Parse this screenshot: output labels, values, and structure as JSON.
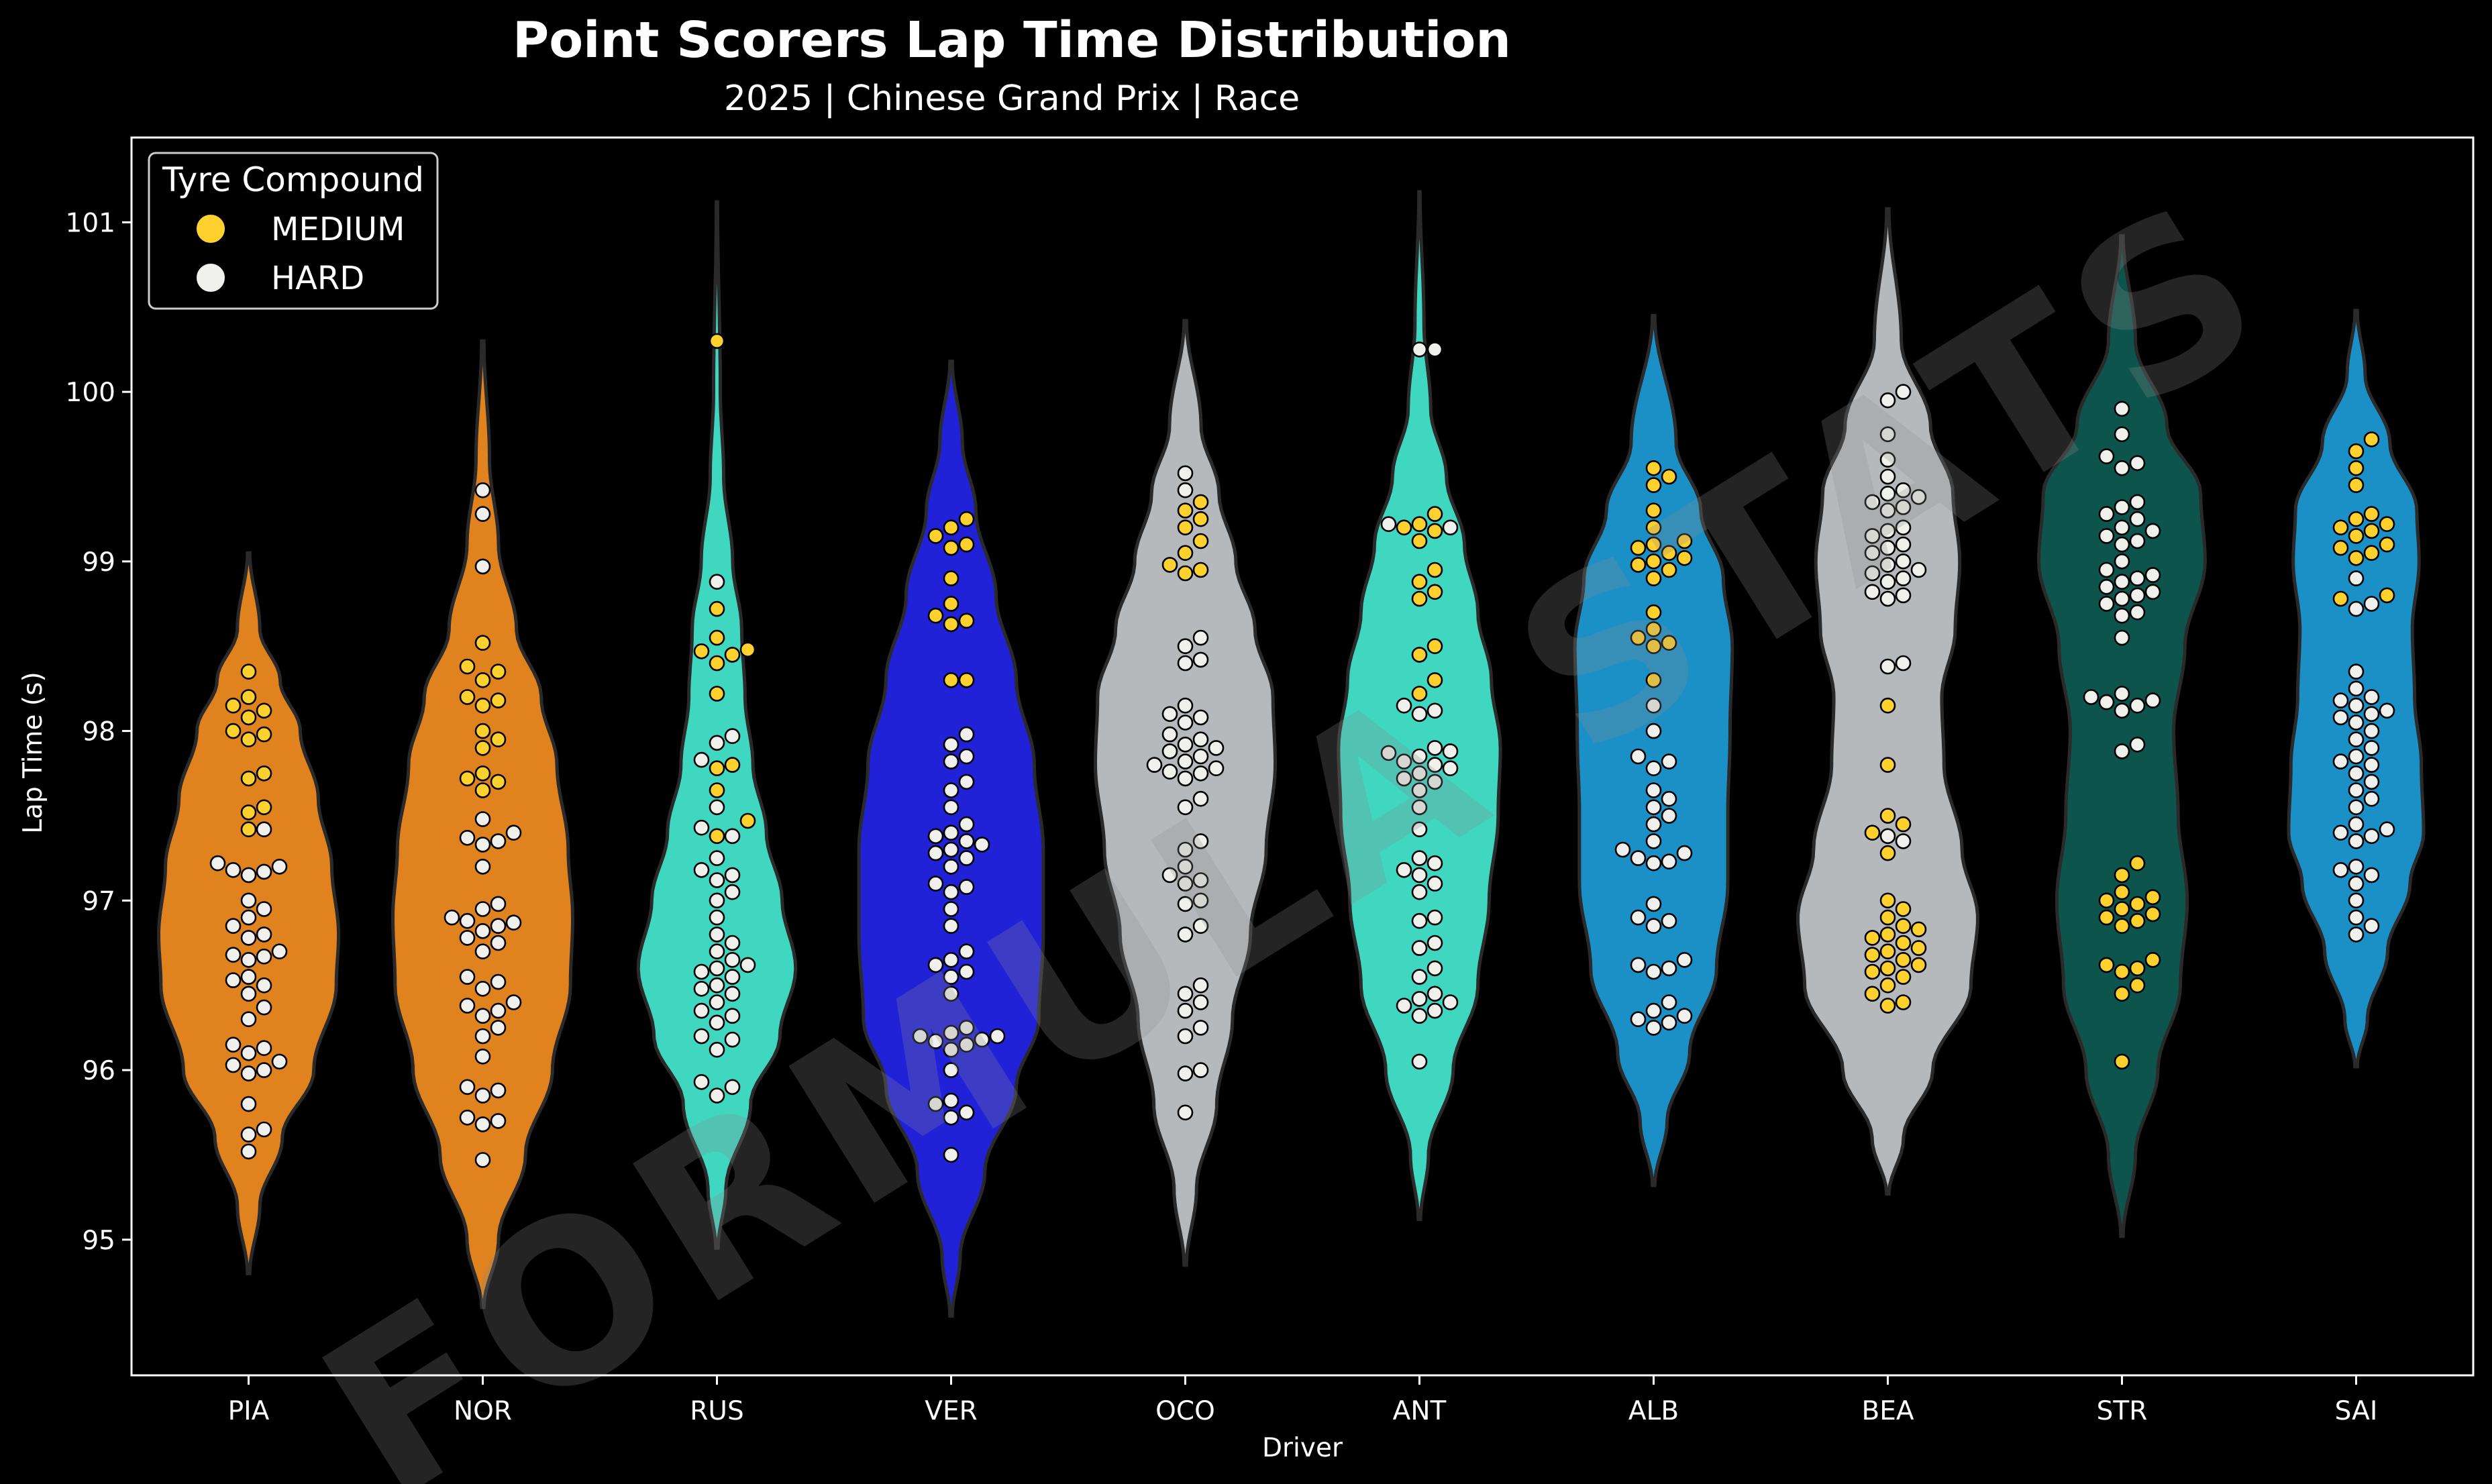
{
  "chart_data": {
    "type": "violin",
    "title": "Point Scorers Lap Time Distribution",
    "subtitle": "2025 | Chinese Grand Prix | Race",
    "xlabel": "Driver",
    "ylabel": "Lap Time (s)",
    "ylim": [
      94.2,
      101.5
    ],
    "yticks": [
      95,
      96,
      97,
      98,
      99,
      100,
      101
    ],
    "grid": false,
    "legend": {
      "title": "Tyre Compound",
      "position": "top-left",
      "entries": [
        {
          "label": "MEDIUM",
          "color": "#FFD12E"
        },
        {
          "label": "HARD",
          "color": "#F0F0EC"
        }
      ]
    },
    "watermark": "FORMULA STATS",
    "compound_colors": {
      "M": "#FFD12E",
      "H": "#F0F0EC",
      "edge": "#000000"
    },
    "drivers": [
      {
        "name": "PIA",
        "color": "#E0821E",
        "violin_range": [
          94.8,
          99.05
        ],
        "density": [
          [
            94.8,
            0.01
          ],
          [
            95.2,
            0.1
          ],
          [
            95.6,
            0.3
          ],
          [
            96.0,
            0.58
          ],
          [
            96.5,
            0.78
          ],
          [
            96.8,
            0.8
          ],
          [
            97.2,
            0.74
          ],
          [
            97.6,
            0.62
          ],
          [
            98.0,
            0.46
          ],
          [
            98.3,
            0.28
          ],
          [
            98.6,
            0.1
          ],
          [
            99.05,
            0.01
          ]
        ],
        "laps_medium": [
          98.35,
          98.2,
          98.15,
          98.12,
          98.08,
          98.0,
          97.98,
          97.95,
          97.75,
          97.72,
          97.55,
          97.52,
          97.42
        ],
        "laps_hard": [
          97.42,
          97.22,
          97.2,
          97.18,
          97.17,
          97.15,
          97.0,
          96.95,
          96.9,
          96.85,
          96.8,
          96.78,
          96.7,
          96.68,
          96.67,
          96.65,
          96.55,
          96.53,
          96.5,
          96.45,
          96.37,
          96.3,
          96.15,
          96.13,
          96.1,
          96.05,
          96.03,
          96.0,
          95.98,
          95.8,
          95.65,
          95.62,
          95.52
        ]
      },
      {
        "name": "NOR",
        "color": "#E0821E",
        "violin_range": [
          94.6,
          100.3
        ],
        "density": [
          [
            94.6,
            0.01
          ],
          [
            95.0,
            0.14
          ],
          [
            95.5,
            0.38
          ],
          [
            96.0,
            0.62
          ],
          [
            96.5,
            0.78
          ],
          [
            96.9,
            0.8
          ],
          [
            97.3,
            0.76
          ],
          [
            97.8,
            0.66
          ],
          [
            98.2,
            0.52
          ],
          [
            98.6,
            0.3
          ],
          [
            99.1,
            0.14
          ],
          [
            99.6,
            0.06
          ],
          [
            100.3,
            0.01
          ]
        ],
        "laps_medium": [
          98.52,
          98.38,
          98.35,
          98.3,
          98.2,
          98.18,
          98.15,
          98.0,
          97.95,
          97.9,
          97.75,
          97.72,
          97.7,
          97.65
        ],
        "laps_hard": [
          99.42,
          99.28,
          98.97,
          97.48,
          97.4,
          97.37,
          97.35,
          97.33,
          97.2,
          96.98,
          96.95,
          96.9,
          96.88,
          96.87,
          96.85,
          96.82,
          96.78,
          96.75,
          96.7,
          96.55,
          96.52,
          96.48,
          96.4,
          96.38,
          96.35,
          96.32,
          96.25,
          96.2,
          96.08,
          95.9,
          95.88,
          95.85,
          95.72,
          95.7,
          95.68,
          95.47
        ]
      },
      {
        "name": "RUS",
        "color": "#3FD7C0",
        "violin_range": [
          94.95,
          101.12
        ],
        "density": [
          [
            94.95,
            0.01
          ],
          [
            95.3,
            0.08
          ],
          [
            95.8,
            0.3
          ],
          [
            96.2,
            0.56
          ],
          [
            96.6,
            0.7
          ],
          [
            97.0,
            0.58
          ],
          [
            97.4,
            0.44
          ],
          [
            97.8,
            0.32
          ],
          [
            98.2,
            0.25
          ],
          [
            98.6,
            0.22
          ],
          [
            99.0,
            0.14
          ],
          [
            99.5,
            0.06
          ],
          [
            100.0,
            0.03
          ],
          [
            101.12,
            0.005
          ]
        ],
        "laps_medium": [
          100.3,
          98.72,
          98.55,
          98.48,
          98.47,
          98.45,
          98.4,
          98.22,
          97.8,
          97.78,
          97.65,
          97.47,
          97.38
        ],
        "laps_hard": [
          98.88,
          97.97,
          97.93,
          97.83,
          97.55,
          97.43,
          97.38,
          97.25,
          97.18,
          97.15,
          97.12,
          97.05,
          97.0,
          96.9,
          96.8,
          96.75,
          96.7,
          96.65,
          96.62,
          96.6,
          96.58,
          96.55,
          96.5,
          96.48,
          96.45,
          96.4,
          96.35,
          96.32,
          96.28,
          96.2,
          96.18,
          96.12,
          95.93,
          95.9,
          95.85
        ]
      },
      {
        "name": "VER",
        "color": "#2121D8",
        "violin_range": [
          94.55,
          100.18
        ],
        "density": [
          [
            94.55,
            0.01
          ],
          [
            94.9,
            0.08
          ],
          [
            95.4,
            0.3
          ],
          [
            95.9,
            0.58
          ],
          [
            96.3,
            0.78
          ],
          [
            96.8,
            0.82
          ],
          [
            97.3,
            0.82
          ],
          [
            97.8,
            0.74
          ],
          [
            98.3,
            0.58
          ],
          [
            98.8,
            0.4
          ],
          [
            99.3,
            0.22
          ],
          [
            99.7,
            0.1
          ],
          [
            100.18,
            0.01
          ]
        ],
        "laps_medium": [
          99.25,
          99.2,
          99.15,
          99.1,
          99.08,
          98.9,
          98.75,
          98.68,
          98.65,
          98.63,
          98.3,
          98.3
        ],
        "laps_hard": [
          97.98,
          97.92,
          97.85,
          97.82,
          97.7,
          97.65,
          97.55,
          97.45,
          97.4,
          97.38,
          97.35,
          97.33,
          97.3,
          97.28,
          97.25,
          97.2,
          97.1,
          97.08,
          97.05,
          96.95,
          96.85,
          96.7,
          96.65,
          96.62,
          96.58,
          96.55,
          96.45,
          96.25,
          96.22,
          96.2,
          96.2,
          96.18,
          96.17,
          96.15,
          96.12,
          96.0,
          95.82,
          95.8,
          95.75,
          95.72,
          95.5
        ]
      },
      {
        "name": "OCO",
        "color": "#B6B9BC",
        "violin_range": [
          94.85,
          100.42
        ],
        "density": [
          [
            94.85,
            0.01
          ],
          [
            95.3,
            0.1
          ],
          [
            95.8,
            0.28
          ],
          [
            96.3,
            0.42
          ],
          [
            96.8,
            0.58
          ],
          [
            97.3,
            0.72
          ],
          [
            97.8,
            0.8
          ],
          [
            98.2,
            0.78
          ],
          [
            98.6,
            0.62
          ],
          [
            99.0,
            0.45
          ],
          [
            99.4,
            0.3
          ],
          [
            99.8,
            0.14
          ],
          [
            100.42,
            0.01
          ]
        ],
        "laps_medium": [
          99.35,
          99.3,
          99.25,
          99.2,
          99.12,
          99.05,
          98.98,
          98.95,
          98.93
        ],
        "laps_hard": [
          99.52,
          99.42,
          98.55,
          98.5,
          98.42,
          98.4,
          98.15,
          98.1,
          98.08,
          98.05,
          97.98,
          97.95,
          97.92,
          97.9,
          97.88,
          97.85,
          97.82,
          97.8,
          97.78,
          97.76,
          97.75,
          97.72,
          97.6,
          97.55,
          97.35,
          97.3,
          97.2,
          97.15,
          97.12,
          97.1,
          97.0,
          96.98,
          96.85,
          96.8,
          96.5,
          96.45,
          96.4,
          96.35,
          96.25,
          96.2,
          96.0,
          95.98,
          95.75
        ]
      },
      {
        "name": "ANT",
        "color": "#3FD7C0",
        "violin_range": [
          95.12,
          101.18
        ],
        "density": [
          [
            95.12,
            0.01
          ],
          [
            95.5,
            0.08
          ],
          [
            96.0,
            0.3
          ],
          [
            96.5,
            0.52
          ],
          [
            97.0,
            0.62
          ],
          [
            97.5,
            0.7
          ],
          [
            97.9,
            0.72
          ],
          [
            98.3,
            0.64
          ],
          [
            98.7,
            0.52
          ],
          [
            99.1,
            0.4
          ],
          [
            99.5,
            0.24
          ],
          [
            99.9,
            0.1
          ],
          [
            100.4,
            0.04
          ],
          [
            101.18,
            0.005
          ]
        ],
        "laps_medium": [
          99.28,
          99.22,
          99.2,
          99.18,
          99.12,
          98.95,
          98.88,
          98.82,
          98.78,
          98.5,
          98.45,
          98.3,
          98.22
        ],
        "laps_hard": [
          100.25,
          100.25,
          99.22,
          99.2,
          98.15,
          98.12,
          98.1,
          97.9,
          97.88,
          97.87,
          97.85,
          97.82,
          97.8,
          97.78,
          97.75,
          97.72,
          97.7,
          97.65,
          97.55,
          97.42,
          97.25,
          97.22,
          97.18,
          97.15,
          97.1,
          97.05,
          96.9,
          96.88,
          96.75,
          96.72,
          96.6,
          96.55,
          96.45,
          96.42,
          96.4,
          96.38,
          96.35,
          96.32,
          96.05
        ]
      },
      {
        "name": "ALB",
        "color": "#1A90C6",
        "violin_range": [
          95.32,
          100.45
        ],
        "density": [
          [
            95.32,
            0.01
          ],
          [
            95.7,
            0.12
          ],
          [
            96.1,
            0.32
          ],
          [
            96.6,
            0.56
          ],
          [
            97.1,
            0.66
          ],
          [
            97.5,
            0.66
          ],
          [
            98.0,
            0.68
          ],
          [
            98.5,
            0.7
          ],
          [
            98.9,
            0.62
          ],
          [
            99.3,
            0.42
          ],
          [
            99.7,
            0.2
          ],
          [
            100.45,
            0.01
          ]
        ],
        "laps_medium": [
          99.55,
          99.5,
          99.45,
          99.3,
          99.2,
          99.12,
          99.1,
          99.08,
          99.05,
          99.02,
          99.0,
          98.98,
          98.95,
          98.9,
          98.7,
          98.6,
          98.55,
          98.52,
          98.5,
          98.3
        ],
        "laps_hard": [
          98.15,
          98.0,
          97.85,
          97.82,
          97.78,
          97.65,
          97.6,
          97.55,
          97.5,
          97.45,
          97.35,
          97.3,
          97.28,
          97.25,
          97.23,
          97.22,
          96.98,
          96.9,
          96.88,
          96.85,
          96.65,
          96.62,
          96.6,
          96.58,
          96.4,
          96.35,
          96.32,
          96.3,
          96.28,
          96.25
        ]
      },
      {
        "name": "BEA",
        "color": "#B6B9BC",
        "violin_range": [
          95.27,
          101.08
        ],
        "density": [
          [
            95.27,
            0.01
          ],
          [
            95.6,
            0.14
          ],
          [
            96.0,
            0.4
          ],
          [
            96.5,
            0.74
          ],
          [
            96.9,
            0.8
          ],
          [
            97.3,
            0.66
          ],
          [
            97.8,
            0.5
          ],
          [
            98.2,
            0.48
          ],
          [
            98.6,
            0.6
          ],
          [
            99.0,
            0.64
          ],
          [
            99.4,
            0.58
          ],
          [
            99.8,
            0.38
          ],
          [
            100.3,
            0.12
          ],
          [
            101.08,
            0.01
          ]
        ],
        "laps_medium": [
          98.15,
          97.8,
          97.5,
          97.45,
          97.4,
          97.28,
          97.0,
          96.95,
          96.9,
          96.85,
          96.83,
          96.8,
          96.78,
          96.75,
          96.72,
          96.7,
          96.68,
          96.65,
          96.62,
          96.6,
          96.58,
          96.55,
          96.5,
          96.45,
          96.4,
          96.38
        ],
        "laps_hard": [
          100.0,
          99.95,
          99.75,
          99.6,
          99.5,
          99.42,
          99.4,
          99.38,
          99.35,
          99.32,
          99.3,
          99.2,
          99.18,
          99.15,
          99.1,
          99.08,
          99.05,
          99.0,
          98.98,
          98.95,
          98.93,
          98.9,
          98.88,
          98.82,
          98.8,
          98.78,
          98.4,
          98.38,
          97.38,
          97.35
        ]
      },
      {
        "name": "STR",
        "color": "#0D544D",
        "violin_range": [
          95.02,
          100.92
        ],
        "density": [
          [
            95.02,
            0.01
          ],
          [
            95.5,
            0.12
          ],
          [
            96.0,
            0.32
          ],
          [
            96.5,
            0.52
          ],
          [
            97.0,
            0.58
          ],
          [
            97.5,
            0.5
          ],
          [
            98.0,
            0.46
          ],
          [
            98.5,
            0.56
          ],
          [
            99.0,
            0.74
          ],
          [
            99.4,
            0.7
          ],
          [
            99.8,
            0.4
          ],
          [
            100.3,
            0.12
          ],
          [
            100.92,
            0.01
          ]
        ],
        "laps_medium": [
          97.22,
          97.15,
          97.05,
          97.02,
          97.0,
          96.98,
          96.95,
          96.92,
          96.9,
          96.88,
          96.85,
          96.65,
          96.62,
          96.6,
          96.58,
          96.5,
          96.45,
          96.05
        ],
        "laps_hard": [
          99.9,
          99.75,
          99.62,
          99.58,
          99.55,
          99.35,
          99.32,
          99.28,
          99.25,
          99.2,
          99.18,
          99.15,
          99.12,
          99.1,
          99.0,
          98.95,
          98.92,
          98.9,
          98.88,
          98.85,
          98.82,
          98.8,
          98.78,
          98.75,
          98.7,
          98.68,
          98.55,
          98.22,
          98.2,
          98.18,
          98.17,
          98.15,
          98.12,
          97.92,
          97.88
        ]
      },
      {
        "name": "SAI",
        "color": "#1A90C6",
        "violin_range": [
          96.02,
          100.48
        ],
        "density": [
          [
            96.02,
            0.01
          ],
          [
            96.3,
            0.1
          ],
          [
            96.7,
            0.28
          ],
          [
            97.1,
            0.48
          ],
          [
            97.4,
            0.6
          ],
          [
            97.8,
            0.58
          ],
          [
            98.2,
            0.52
          ],
          [
            98.6,
            0.5
          ],
          [
            99.0,
            0.56
          ],
          [
            99.3,
            0.54
          ],
          [
            99.7,
            0.3
          ],
          [
            100.1,
            0.08
          ],
          [
            100.48,
            0.01
          ]
        ],
        "laps_medium": [
          99.72,
          99.65,
          99.55,
          99.45,
          99.28,
          99.25,
          99.22,
          99.2,
          99.18,
          99.15,
          99.1,
          99.08,
          99.05,
          99.02,
          98.8,
          98.78
        ],
        "laps_hard": [
          98.9,
          98.75,
          98.72,
          98.35,
          98.25,
          98.2,
          98.18,
          98.15,
          98.12,
          98.1,
          98.08,
          98.05,
          98.0,
          97.95,
          97.9,
          97.85,
          97.82,
          97.8,
          97.75,
          97.7,
          97.65,
          97.6,
          97.55,
          97.45,
          97.42,
          97.4,
          97.38,
          97.35,
          97.2,
          97.18,
          97.15,
          97.1,
          97.0,
          96.9,
          96.85,
          96.8
        ]
      }
    ]
  }
}
